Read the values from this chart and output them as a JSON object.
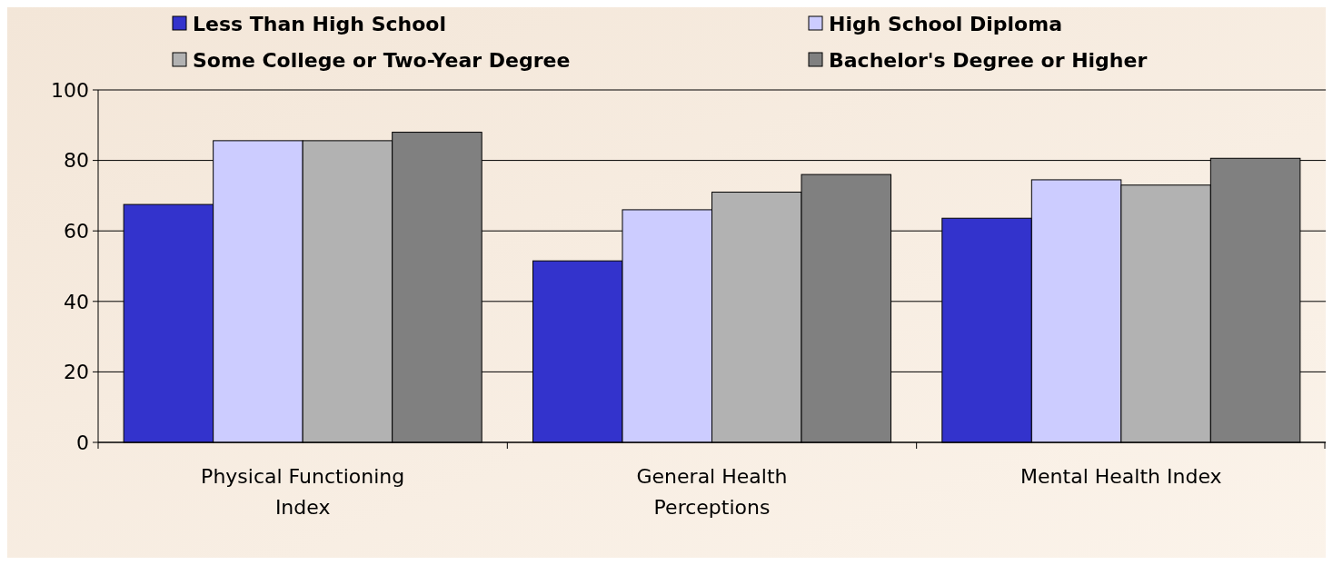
{
  "chart_data": {
    "type": "bar",
    "categories": [
      "Physical Functioning Index",
      "General Health Perceptions",
      "Mental Health Index"
    ],
    "series": [
      {
        "name": "Less Than High School",
        "color": "#3333cc",
        "values": [
          67.5,
          51.5,
          63.6
        ]
      },
      {
        "name": "High School Diploma",
        "color": "#ccccff",
        "values": [
          85.6,
          66,
          74.5
        ]
      },
      {
        "name": "Some College or Two-Year Degree",
        "color": "#b2b2b2",
        "values": [
          85.6,
          71,
          73
        ]
      },
      {
        "name": "Bachelor's Degree or Higher",
        "color": "#808080",
        "values": [
          88,
          76,
          80.6
        ]
      }
    ],
    "ylim": [
      0,
      100
    ],
    "yticks": [
      0,
      20,
      40,
      60,
      80,
      100
    ],
    "grid": "y",
    "legend": "top"
  }
}
